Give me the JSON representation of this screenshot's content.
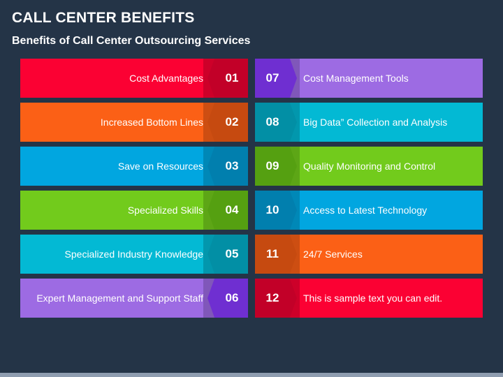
{
  "title": "CALL CENTER BENEFITS",
  "subtitle": "Benefits of Call Center Outsourcing Services",
  "left_items": [
    {
      "number": "01",
      "label": "Cost Advantages",
      "color": "#fb0133",
      "dark": "#c20028"
    },
    {
      "number": "02",
      "label": "Increased Bottom Lines",
      "color": "#fb6016",
      "dark": "#c64a10"
    },
    {
      "number": "03",
      "label": "Save on Resources",
      "color": "#01a6e0",
      "dark": "#017fae"
    },
    {
      "number": "04",
      "label": "Specialized Skills",
      "color": "#72cb1c",
      "dark": "#55a011"
    },
    {
      "number": "05",
      "label": "Specialized Industry Knowledge",
      "color": "#03b9d4",
      "dark": "#028fa5"
    },
    {
      "number": "06",
      "label": "Expert Management and Support Staff",
      "color": "#9d6be3",
      "dark": "#6f2fd1"
    }
  ],
  "right_items": [
    {
      "number": "07",
      "label": "Cost Management Tools",
      "color": "#9d6be3",
      "dark": "#6f2fd1"
    },
    {
      "number": "08",
      "label": "Big Data” Collection and Analysis",
      "color": "#03b9d4",
      "dark": "#028fa5"
    },
    {
      "number": "09",
      "label": "Quality Monitoring and Control",
      "color": "#72cb1c",
      "dark": "#55a011"
    },
    {
      "number": "10",
      "label": "Access to Latest Technology",
      "color": "#01a6e0",
      "dark": "#017fae"
    },
    {
      "number": "11",
      "label": "24/7 Services",
      "color": "#fb6016",
      "dark": "#c64a10"
    },
    {
      "number": "12",
      "label": "This is sample text you can edit.",
      "color": "#fb0133",
      "dark": "#c20028"
    }
  ]
}
